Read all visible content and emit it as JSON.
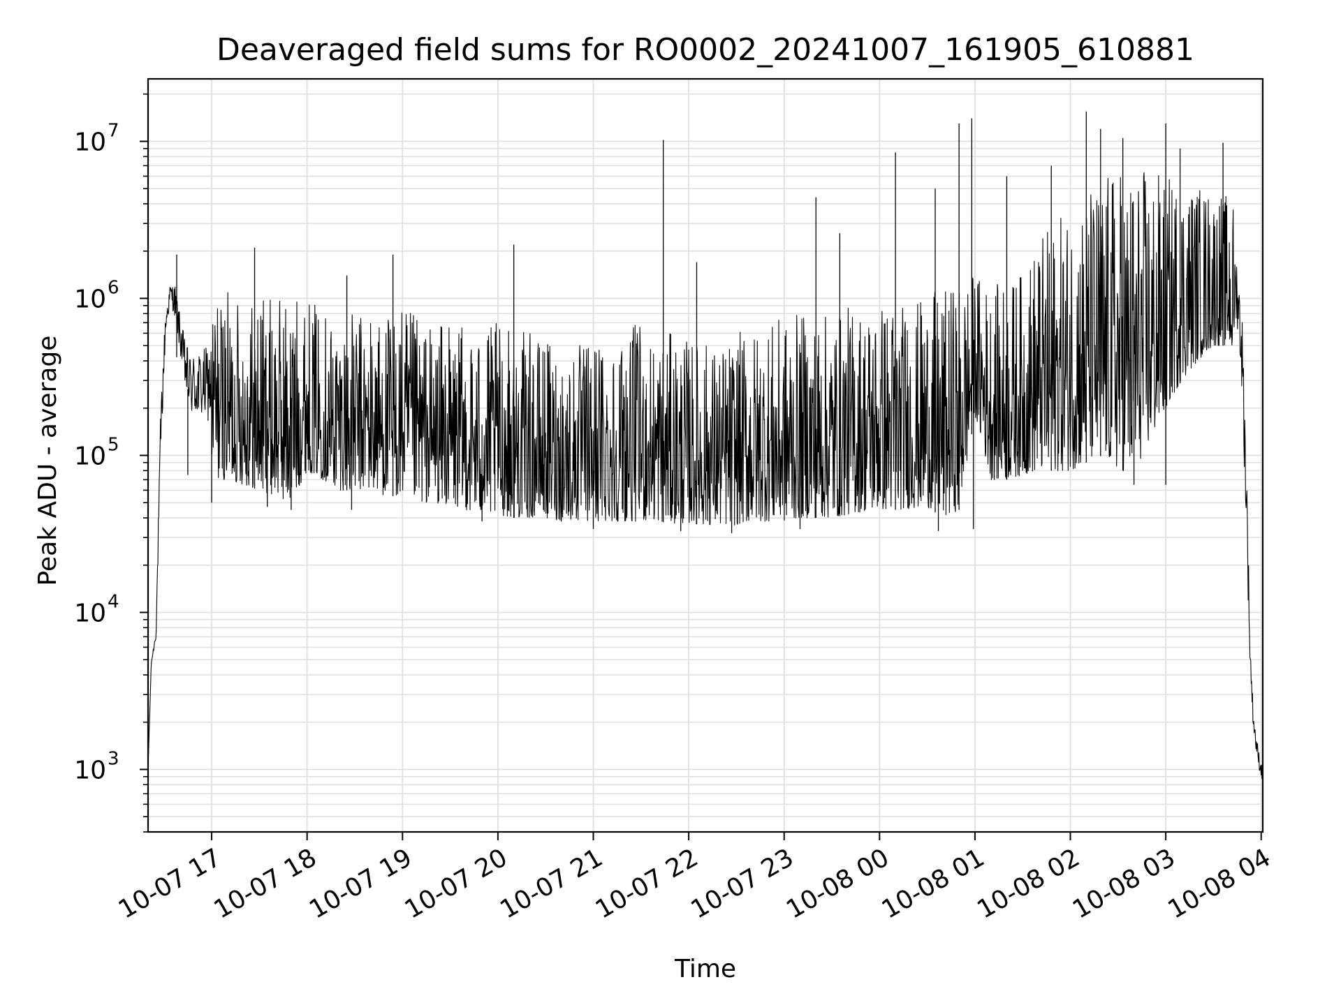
{
  "chart_data": {
    "type": "line",
    "title": "Deaveraged field sums for RO0002_20241007_161905_610881",
    "xlabel": "Time",
    "ylabel": "Peak ADU - average",
    "yscale": "log",
    "grid": "on",
    "legend": "none",
    "line_color": "#000000",
    "grid_color": "#e0e0e0",
    "x_range": [
      "10-07 16:20",
      "10-08 04:01"
    ],
    "ylim": [
      400,
      25000000
    ],
    "x_ticks": [
      "10-07 17",
      "10-07 18",
      "10-07 19",
      "10-07 20",
      "10-07 21",
      "10-07 22",
      "10-07 23",
      "10-08 00",
      "10-08 01",
      "10-08 02",
      "10-08 03",
      "10-08 04"
    ],
    "y_ticks": [
      {
        "base": "10",
        "exp": "3",
        "value": 1000
      },
      {
        "base": "10",
        "exp": "4",
        "value": 10000
      },
      {
        "base": "10",
        "exp": "5",
        "value": 100000
      },
      {
        "base": "10",
        "exp": "6",
        "value": 1000000
      },
      {
        "base": "10",
        "exp": "7",
        "value": 10000000
      }
    ],
    "series": [
      {
        "x": [
          "10-07 16:20",
          "10-07 16:22",
          "10-07 16:25",
          "10-07 16:28",
          "10-07 16:31",
          "10-07 16:34",
          "10-07 16:37",
          "10-07 16:40",
          "10-07 16:43",
          "10-07 16:46",
          "10-07 16:50",
          "10-07 16:55",
          "10-07 17:00",
          "10-07 17:10",
          "10-07 17:20",
          "10-07 17:30",
          "10-07 17:40",
          "10-07 17:50",
          "10-07 18:00",
          "10-07 18:10",
          "10-07 18:20",
          "10-07 18:30",
          "10-07 18:40",
          "10-07 18:50",
          "10-07 19:00",
          "10-07 19:10",
          "10-07 19:20",
          "10-07 19:30",
          "10-07 19:40",
          "10-07 19:50",
          "10-07 20:00",
          "10-07 20:10",
          "10-07 20:20",
          "10-07 20:30",
          "10-07 20:40",
          "10-07 20:50",
          "10-07 21:00",
          "10-07 21:10",
          "10-07 21:20",
          "10-07 21:30",
          "10-07 21:40",
          "10-07 21:50",
          "10-07 22:00",
          "10-07 22:10",
          "10-07 22:20",
          "10-07 22:30",
          "10-07 22:40",
          "10-07 22:50",
          "10-07 23:00",
          "10-07 23:10",
          "10-07 23:20",
          "10-07 23:30",
          "10-07 23:40",
          "10-07 23:50",
          "10-08 00:00",
          "10-08 00:10",
          "10-08 00:20",
          "10-08 00:30",
          "10-08 00:40",
          "10-08 00:50",
          "10-08 01:00",
          "10-08 01:10",
          "10-08 01:20",
          "10-08 01:30",
          "10-08 01:40",
          "10-08 01:50",
          "10-08 02:00",
          "10-08 02:10",
          "10-08 02:20",
          "10-08 02:30",
          "10-08 02:40",
          "10-08 02:50",
          "10-08 03:00",
          "10-08 03:10",
          "10-08 03:20",
          "10-08 03:30",
          "10-08 03:40",
          "10-08 03:45",
          "10-08 03:48",
          "10-08 03:51",
          "10-08 03:53",
          "10-08 03:55",
          "10-08 03:57",
          "10-08 03:59",
          "10-08 04:01"
        ],
        "y_low": [
          1000,
          4500,
          6000,
          50000,
          400000,
          800000,
          500000,
          300000,
          150000,
          90000,
          75000,
          70000,
          70000,
          70000,
          65000,
          60000,
          55000,
          50000,
          80000,
          70000,
          60000,
          60000,
          60000,
          55000,
          55000,
          50000,
          50000,
          48000,
          45000,
          42000,
          42000,
          40000,
          40000,
          40000,
          38000,
          38000,
          38000,
          38000,
          38000,
          38000,
          38000,
          37000,
          37000,
          36000,
          36000,
          36000,
          38000,
          38000,
          38000,
          40000,
          40000,
          40000,
          42000,
          44000,
          45000,
          45000,
          46000,
          47000,
          40000,
          45000,
          180000,
          70000,
          70000,
          75000,
          80000,
          80000,
          80000,
          90000,
          100000,
          80000,
          80000,
          120000,
          200000,
          300000,
          400000,
          500000,
          500000,
          300000,
          100000,
          10000,
          3000,
          1500,
          1000,
          800,
          700
        ],
        "y_high": [
          1000,
          5000,
          9000,
          400000,
          1200000,
          1500000,
          1800000,
          1200000,
          1000000,
          900000,
          1000000,
          1100000,
          1200000,
          1100000,
          1000000,
          1100000,
          1000000,
          1100000,
          1000000,
          900000,
          800000,
          800000,
          850000,
          800000,
          900000,
          750000,
          700000,
          700000,
          650000,
          650000,
          700000,
          650000,
          600000,
          550000,
          500000,
          500000,
          600000,
          600000,
          650000,
          700000,
          600000,
          600000,
          550000,
          550000,
          500000,
          600000,
          650000,
          700000,
          750000,
          800000,
          800000,
          800000,
          900000,
          900000,
          1000000,
          1000000,
          900000,
          1100000,
          1100000,
          1300000,
          1500000,
          1200000,
          1300000,
          1500000,
          2500000,
          3000000,
          4000000,
          5000000,
          6000000,
          7000000,
          7000000,
          7000000,
          6000000,
          6000000,
          5500000,
          5000000,
          4500000,
          4000000,
          2000000,
          200000,
          10000,
          3000,
          2000,
          1500,
          1200
        ]
      }
    ],
    "spikes": [
      {
        "x": "10-07 16:38",
        "y": 1900000
      },
      {
        "x": "10-07 17:27",
        "y": 2100000
      },
      {
        "x": "10-07 18:25",
        "y": 1400000
      },
      {
        "x": "10-07 18:54",
        "y": 1900000
      },
      {
        "x": "10-07 20:10",
        "y": 2200000
      },
      {
        "x": "10-07 21:44",
        "y": 10200000
      },
      {
        "x": "10-07 22:05",
        "y": 1700000
      },
      {
        "x": "10-07 23:20",
        "y": 4400000
      },
      {
        "x": "10-07 23:35",
        "y": 2600000
      },
      {
        "x": "10-08 00:10",
        "y": 8500000
      },
      {
        "x": "10-08 00:35",
        "y": 5000000
      },
      {
        "x": "10-08 00:50",
        "y": 13000000
      },
      {
        "x": "10-08 00:58",
        "y": 14000000
      },
      {
        "x": "10-08 01:20",
        "y": 6000000
      },
      {
        "x": "10-08 01:48",
        "y": 7000000
      },
      {
        "x": "10-08 02:10",
        "y": 15500000
      },
      {
        "x": "10-08 02:19",
        "y": 12000000
      },
      {
        "x": "10-08 02:33",
        "y": 10500000
      },
      {
        "x": "10-08 03:00",
        "y": 13000000
      },
      {
        "x": "10-08 03:09",
        "y": 9000000
      },
      {
        "x": "10-08 03:36",
        "y": 9800000
      }
    ],
    "dips": [
      {
        "x": "10-07 16:45",
        "y": 75000
      },
      {
        "x": "10-07 17:00",
        "y": 50000
      },
      {
        "x": "10-07 17:35",
        "y": 47000
      },
      {
        "x": "10-07 17:50",
        "y": 45000
      },
      {
        "x": "10-07 18:28",
        "y": 45000
      },
      {
        "x": "10-07 19:50",
        "y": 38000
      },
      {
        "x": "10-07 21:00",
        "y": 34000
      },
      {
        "x": "10-07 21:55",
        "y": 33000
      },
      {
        "x": "10-07 22:27",
        "y": 32000
      },
      {
        "x": "10-07 23:10",
        "y": 34000
      },
      {
        "x": "10-08 00:37",
        "y": 33000
      },
      {
        "x": "10-08 00:59",
        "y": 34000
      },
      {
        "x": "10-08 02:40",
        "y": 65000
      },
      {
        "x": "10-08 03:00",
        "y": 65000
      }
    ]
  }
}
